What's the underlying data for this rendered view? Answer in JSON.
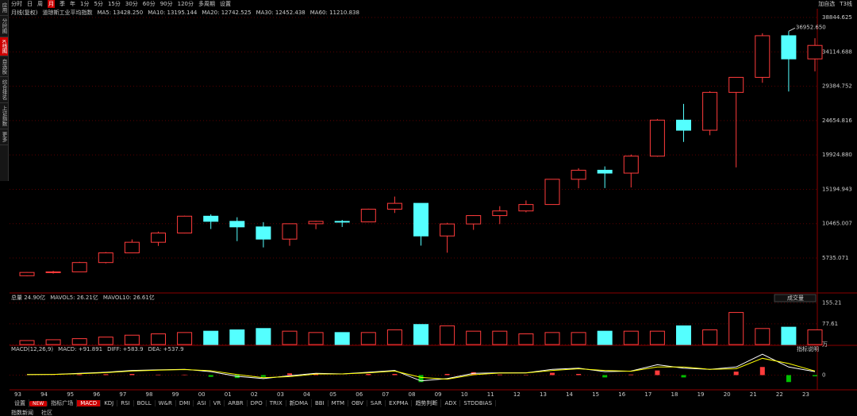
{
  "toolbar": [
    "分时",
    "日",
    "周",
    "月",
    "季",
    "年",
    "1分",
    "5分",
    "15分",
    "30分",
    "60分",
    "90分",
    "120分",
    "多周期",
    "设置"
  ],
  "toolbar_right": [
    "加自选",
    "T3线"
  ],
  "sidebar": [
    "应用",
    "分时图",
    "K线图",
    "自选股",
    "综合排名",
    "上证指数",
    "更多"
  ],
  "volume_dropdown": "成交量",
  "macd_help": "指标说明",
  "indicator_tabs": [
    "设置",
    "NEW",
    "指标广场",
    "MACD",
    "KDJ",
    "RSI",
    "BOLL",
    "W&R",
    "DMI",
    "ASI",
    "VR",
    "ARBR",
    "DPO",
    "TRIX",
    "新DMA",
    "BBI",
    "MTM",
    "OBV",
    "SAR",
    "EXPMA",
    "趋势判断",
    "ADX",
    "STDDBIAS"
  ],
  "footer_tabs": [
    "指数新闻",
    "社区"
  ],
  "chart_data": [
    {
      "type": "candlestick",
      "title": "月线(复权)",
      "subtitle": "道琼斯工业平均指数",
      "legend": [
        {
          "text": "MA5: 13428.250",
          "color": "#ffffff"
        },
        {
          "text": "MA10: 13195.144",
          "color": "#ffff00"
        },
        {
          "text": "MA20: 12742.525",
          "color": "#ff44ff"
        },
        {
          "text": "MA30: 12452.438",
          "color": "#00e000"
        },
        {
          "text": "MA60: 11210.838",
          "color": "#3cc8ff"
        }
      ],
      "categories": [
        "93",
        "94",
        "95",
        "96",
        "97",
        "98",
        "99",
        "00",
        "01",
        "02",
        "03",
        "04",
        "05",
        "06",
        "07",
        "08",
        "09",
        "10",
        "11",
        "12",
        "13",
        "14",
        "15",
        "16",
        "17",
        "18",
        "19",
        "20",
        "21",
        "22",
        "23"
      ],
      "open": [
        3301,
        3754,
        3834,
        5117,
        6448,
        7908,
        9181,
        11497,
        10787,
        10021,
        8342,
        10454,
        10783,
        10718,
        12463,
        13265,
        8776,
        10428,
        11578,
        12218,
        13104,
        16577,
        17823,
        17425,
        19763,
        24719,
        23327,
        28538,
        30606,
        36338,
        33147
      ],
      "high": [
        3800,
        3978,
        5216,
        6560,
        8300,
        9374,
        11568,
        11750,
        11350,
        10673,
        10462,
        10868,
        10984,
        12529,
        14198,
        13279,
        10580,
        11625,
        12876,
        13662,
        16588,
        18103,
        18351,
        19987,
        24876,
        26951,
        28701,
        30637,
        36679,
        36952.65,
        36000
      ],
      "low": [
        3242,
        3593,
        3832,
        5000,
        6391,
        7400,
        9120,
        9731,
        8062,
        7197,
        7416,
        9708,
        10012,
        10667,
        11939,
        7449,
        6470,
        9614,
        10404,
        12035,
        13104,
        15340,
        15370,
        15450,
        19677,
        21713,
        22638,
        18213,
        29856,
        28660,
        31429
      ],
      "close": [
        3754,
        3834,
        5117,
        6448,
        7908,
        9181,
        11497,
        10787,
        10021,
        8342,
        10454,
        10783,
        10718,
        12463,
        13265,
        8776,
        10428,
        11578,
        12218,
        13104,
        16577,
        17823,
        17425,
        19763,
        24719,
        23327,
        28538,
        30606,
        36338,
        33147,
        35000
      ],
      "annotation": "36952.650",
      "up_color": "#ff3b3b",
      "down_color": "#54ffff",
      "ylim": [
        1040,
        40050
      ],
      "yticks": [
        5735.071,
        10465.007,
        15194.943,
        {
          "value": 19924.88,
          "label": "19924.880"
        },
        24654.816,
        29384.752,
        34114.688,
        38844.625
      ]
    },
    {
      "type": "bar",
      "title": "总量 24.90亿",
      "legend": [
        {
          "text": "MAVOL5: 26.21亿",
          "color": "#ffffff"
        },
        {
          "text": "MAVOL10: 26.61亿",
          "color": "#ffff00"
        }
      ],
      "values": [
        15,
        18,
        22,
        28,
        35,
        40,
        45,
        50,
        55,
        60,
        50,
        45,
        45,
        45,
        55,
        75,
        70,
        50,
        50,
        40,
        45,
        45,
        50,
        50,
        50,
        70,
        55,
        120,
        60,
        65,
        55
      ],
      "ylim": [
        0,
        190
      ],
      "yticks": [
        155.21,
        77.61,
        {
          "value": 0,
          "label": "万"
        }
      ]
    },
    {
      "type": "macd",
      "title": "MACD(12,26,9)",
      "legend": [
        {
          "text": "MACD: +91.891",
          "color": "#ff3b3b"
        },
        {
          "text": "DIFF: +583.9",
          "color": "#ffffff"
        },
        {
          "text": "DEA: +537.9",
          "color": "#ffff00"
        }
      ],
      "macd": [
        10,
        10,
        60,
        80,
        100,
        40,
        40,
        -150,
        -250,
        -150,
        150,
        120,
        0,
        100,
        100,
        -600,
        100,
        250,
        50,
        30,
        200,
        100,
        -200,
        50,
        400,
        -200,
        0,
        300,
        700,
        -600,
        -100
      ],
      "diff": [
        50,
        60,
        150,
        250,
        400,
        450,
        500,
        300,
        -100,
        -300,
        -50,
        150,
        100,
        250,
        400,
        -500,
        -300,
        150,
        200,
        200,
        500,
        600,
        300,
        350,
        900,
        600,
        500,
        700,
        1800,
        700,
        300
      ],
      "dea": [
        40,
        55,
        120,
        210,
        350,
        430,
        480,
        380,
        50,
        -220,
        -130,
        90,
        100,
        200,
        350,
        -200,
        -350,
        30,
        180,
        190,
        400,
        550,
        400,
        330,
        700,
        700,
        500,
        550,
        1450,
        1000,
        350
      ],
      "ylim": [
        -1200,
        2500
      ],
      "yticks": [
        0
      ]
    }
  ]
}
